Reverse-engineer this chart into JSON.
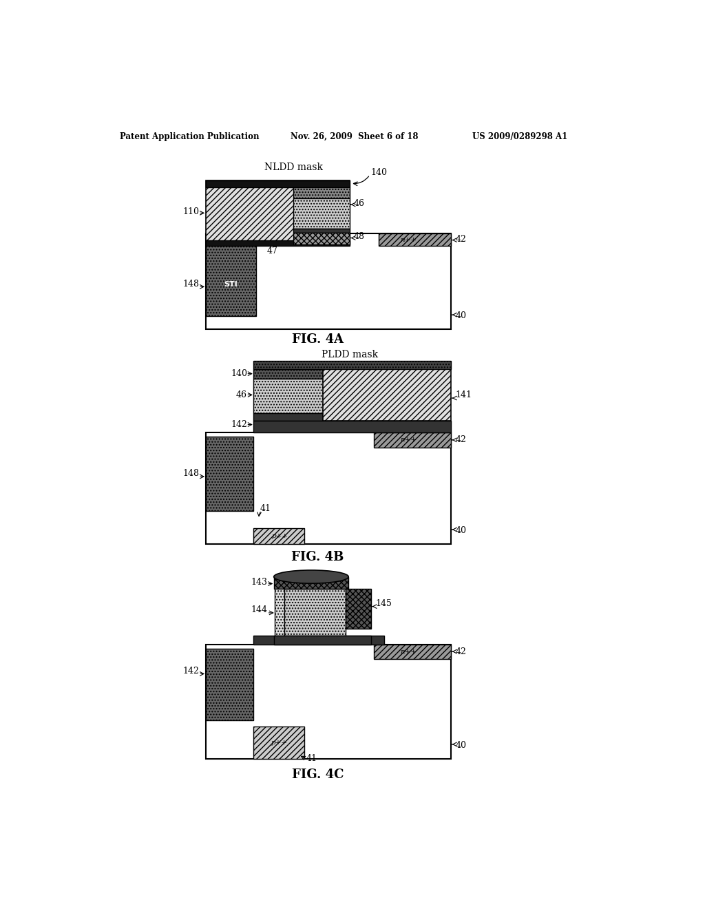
{
  "page_title_left": "Patent Application Publication",
  "page_title_center": "Nov. 26, 2009  Sheet 6 of 18",
  "page_title_right": "US 2009/0289298 A1",
  "background": "#ffffff"
}
